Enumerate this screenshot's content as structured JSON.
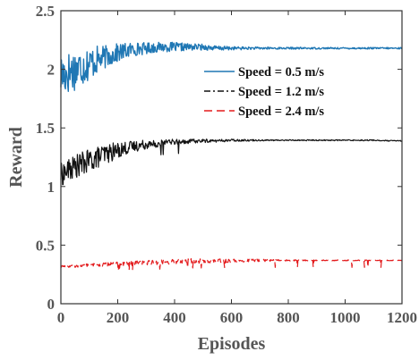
{
  "chart_data": {
    "type": "line",
    "title": "",
    "xlabel": "Episodes",
    "ylabel": "Reward",
    "xlim": [
      0,
      1200
    ],
    "ylim": [
      0,
      2.5
    ],
    "x_ticks": [
      0,
      200,
      400,
      600,
      800,
      1000,
      1200
    ],
    "y_ticks": [
      0,
      0.5,
      1,
      1.5,
      2,
      2.5
    ],
    "x_tick_labels": [
      "0",
      "200",
      "400",
      "600",
      "800",
      "1000",
      "1200"
    ],
    "y_tick_labels": [
      "0",
      "0.5",
      "1",
      "1.5",
      "2",
      "2.5"
    ],
    "grid": false,
    "legend_position": "top-right",
    "series": [
      {
        "name": "Speed =  0.5 m/s",
        "color": "#1f77b4",
        "dash": "solid",
        "x": [
          0,
          50,
          100,
          150,
          200,
          250,
          300,
          350,
          400,
          450,
          500,
          550,
          600,
          650,
          700,
          750,
          800,
          850,
          900,
          950,
          1000,
          1050,
          1100,
          1150,
          1200
        ],
        "y": [
          1.95,
          2.0,
          2.05,
          2.1,
          2.14,
          2.17,
          2.18,
          2.19,
          2.19,
          2.19,
          2.19,
          2.18,
          2.18,
          2.18,
          2.18,
          2.18,
          2.18,
          2.18,
          2.18,
          2.18,
          2.18,
          2.18,
          2.18,
          2.18,
          2.18
        ],
        "noise": [
          0.2,
          0.18,
          0.15,
          0.1,
          0.08,
          0.06,
          0.05,
          0.04,
          0.04,
          0.03,
          0.025,
          0.02,
          0.015,
          0.012,
          0.01,
          0.01,
          0.008,
          0.008,
          0.007,
          0.007,
          0.007,
          0.007,
          0.007,
          0.007,
          0.007
        ]
      },
      {
        "name": "Speed = 1.2 m/s",
        "color": "#111111",
        "dash": "dashdot",
        "x": [
          0,
          50,
          100,
          150,
          200,
          250,
          300,
          350,
          400,
          450,
          500,
          550,
          600,
          650,
          700,
          750,
          800,
          850,
          900,
          950,
          1000,
          1050,
          1100,
          1150,
          1200
        ],
        "y": [
          1.1,
          1.17,
          1.22,
          1.27,
          1.31,
          1.34,
          1.36,
          1.37,
          1.38,
          1.385,
          1.39,
          1.39,
          1.395,
          1.395,
          1.395,
          1.395,
          1.395,
          1.395,
          1.395,
          1.395,
          1.395,
          1.395,
          1.395,
          1.39,
          1.39
        ],
        "noise": [
          0.1,
          0.1,
          0.1,
          0.09,
          0.07,
          0.05,
          0.04,
          0.03,
          0.025,
          0.02,
          0.015,
          0.012,
          0.01,
          0.008,
          0.006,
          0.005,
          0.005,
          0.005,
          0.005,
          0.005,
          0.005,
          0.005,
          0.005,
          0.005,
          0.005
        ]
      },
      {
        "name": "Speed = 2.4 m/s",
        "color": "#e31a1c",
        "dash": "dashed",
        "x": [
          0,
          50,
          100,
          150,
          200,
          250,
          300,
          350,
          400,
          450,
          500,
          550,
          600,
          650,
          700,
          750,
          800,
          850,
          900,
          950,
          1000,
          1050,
          1100,
          1150,
          1200
        ],
        "y": [
          0.32,
          0.32,
          0.33,
          0.335,
          0.34,
          0.345,
          0.35,
          0.355,
          0.36,
          0.365,
          0.365,
          0.365,
          0.365,
          0.37,
          0.37,
          0.37,
          0.37,
          0.37,
          0.37,
          0.37,
          0.37,
          0.37,
          0.37,
          0.37,
          0.37
        ],
        "noise": [
          0.01,
          0.01,
          0.012,
          0.015,
          0.015,
          0.02,
          0.02,
          0.02,
          0.02,
          0.02,
          0.02,
          0.018,
          0.015,
          0.012,
          0.01,
          0.008,
          0.006,
          0.005,
          0.004,
          0.004,
          0.004,
          0.003,
          0.003,
          0.003,
          0.003
        ]
      }
    ]
  }
}
